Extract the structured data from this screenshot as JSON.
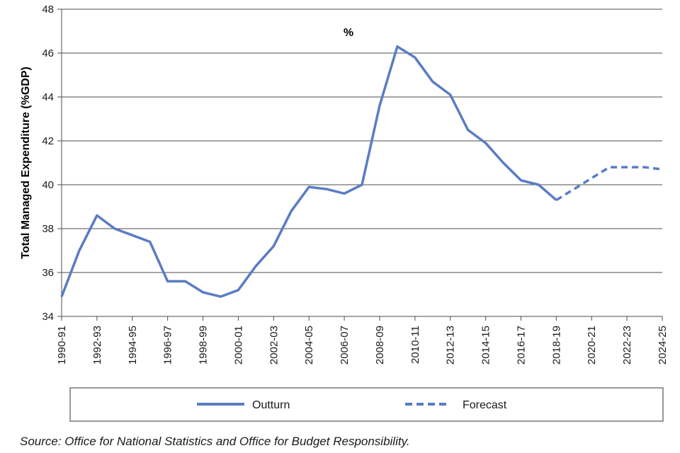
{
  "chart_data": {
    "type": "line",
    "unit_label": "%",
    "ylabel": "Total Managed Expenditure (%GDP)",
    "xlabel": "",
    "ylim": [
      34,
      48
    ],
    "yticks": [
      34,
      36,
      38,
      40,
      42,
      44,
      46,
      48
    ],
    "categories": [
      "1990-91",
      "1991-92",
      "1992-93",
      "1993-94",
      "1994-95",
      "1995-96",
      "1996-97",
      "1997-98",
      "1998-99",
      "1999-00",
      "2000-01",
      "2001-02",
      "2002-03",
      "2003-04",
      "2004-05",
      "2005-06",
      "2006-07",
      "2007-08",
      "2008-09",
      "2009-10",
      "2010-11",
      "2011-12",
      "2012-13",
      "2013-14",
      "2014-15",
      "2015-16",
      "2016-17",
      "2017-18",
      "2018-19",
      "2019-20",
      "2020-21",
      "2021-22",
      "2022-23",
      "2023-24",
      "2024-25"
    ],
    "tick_labels": [
      "1990-91",
      "1992-93",
      "1994-95",
      "1996-97",
      "1998-99",
      "2000-01",
      "2002-03",
      "2004-05",
      "2006-07",
      "2008-09",
      "2010-11",
      "2012-13",
      "2014-15",
      "2016-17",
      "2018-19",
      "2020-21",
      "2022-23",
      "2024-25"
    ],
    "grid": true,
    "legend_position": "bottom",
    "series": [
      {
        "name": "Outturn",
        "style": "solid",
        "color": "#5b7cc4",
        "x": [
          "1990-91",
          "1991-92",
          "1992-93",
          "1993-94",
          "1994-95",
          "1995-96",
          "1996-97",
          "1997-98",
          "1998-99",
          "1999-00",
          "2000-01",
          "2001-02",
          "2002-03",
          "2003-04",
          "2004-05",
          "2005-06",
          "2006-07",
          "2007-08",
          "2008-09",
          "2009-10",
          "2010-11",
          "2011-12",
          "2012-13",
          "2013-14",
          "2014-15",
          "2015-16",
          "2016-17",
          "2017-18",
          "2018-19"
        ],
        "values": [
          34.9,
          37.0,
          38.6,
          38.0,
          37.7,
          37.4,
          35.6,
          35.6,
          35.1,
          34.9,
          35.2,
          36.3,
          37.2,
          38.8,
          39.9,
          39.8,
          39.6,
          40.0,
          43.6,
          46.3,
          45.8,
          44.7,
          44.1,
          42.5,
          41.9,
          41.0,
          40.2,
          40.0,
          39.3
        ]
      },
      {
        "name": "Forecast",
        "style": "dashed",
        "color": "#5b7cc4",
        "x": [
          "2018-19",
          "2019-20",
          "2020-21",
          "2021-22",
          "2022-23",
          "2023-24",
          "2024-25"
        ],
        "values": [
          39.3,
          39.8,
          40.3,
          40.8,
          40.8,
          40.8,
          40.7
        ]
      }
    ]
  },
  "source": "Source: Office for National Statistics and Office for Budget Responsibility."
}
